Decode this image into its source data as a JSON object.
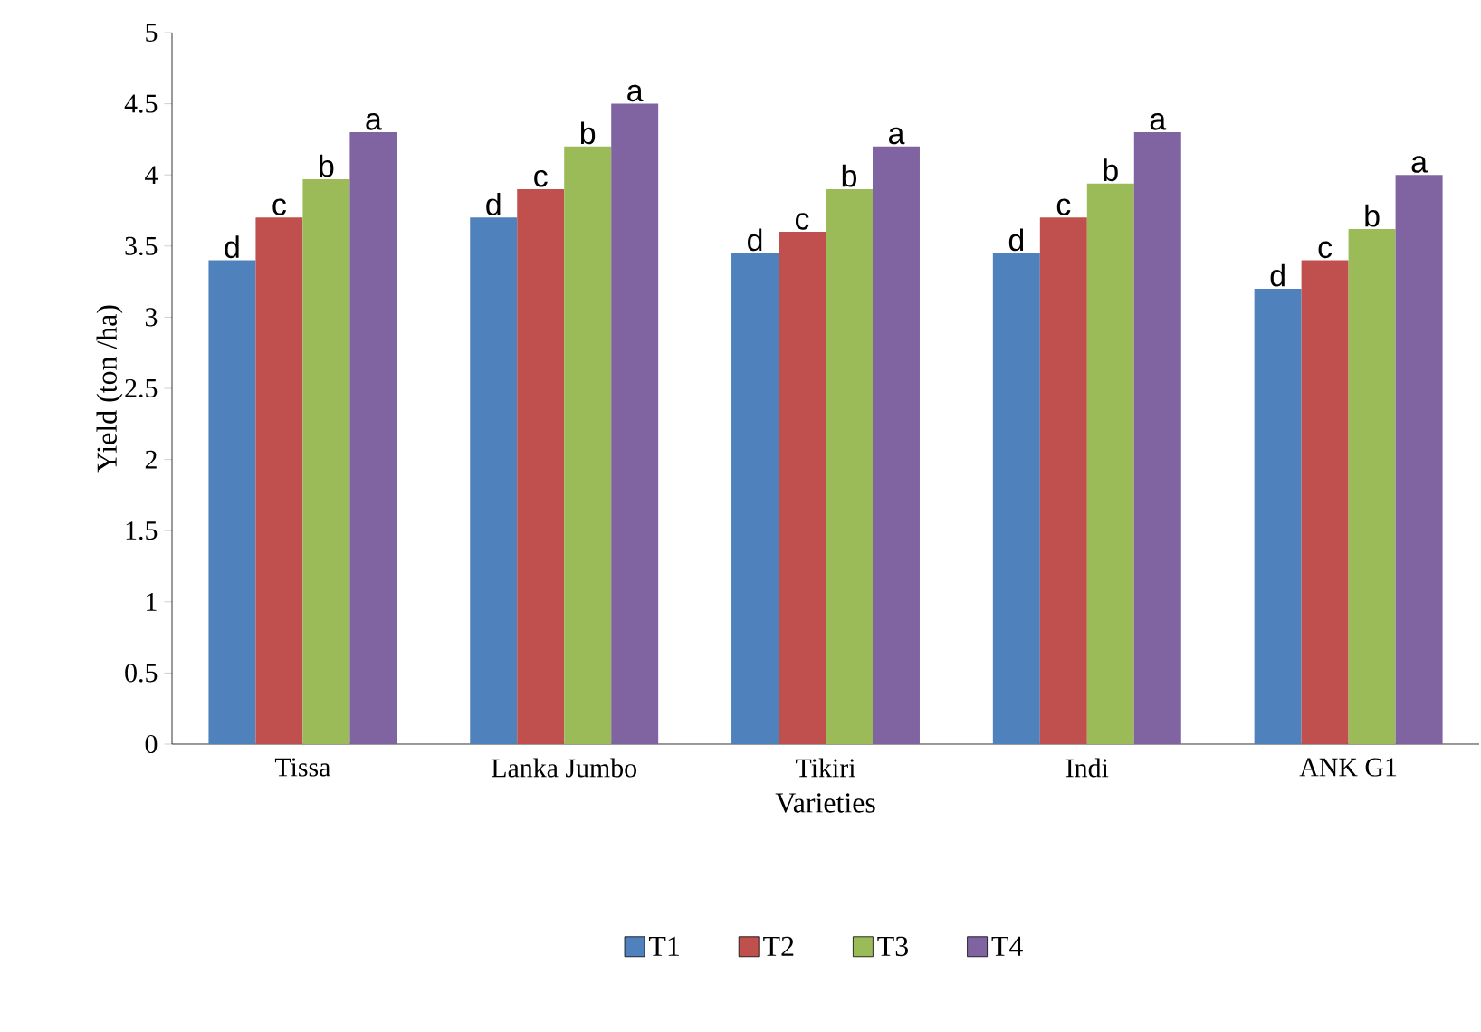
{
  "chart_data": {
    "type": "bar",
    "xlabel": "Varieties",
    "ylabel": "Yield (ton /ha)",
    "categories": [
      "Tissa",
      "Lanka Jumbo",
      "Tikiri",
      "Indi",
      "ANK G1"
    ],
    "series": [
      {
        "name": "T1",
        "color": "#4f81bd",
        "values": [
          3.4,
          3.7,
          3.45,
          3.45,
          3.2
        ],
        "value_labels": [
          "d",
          "d",
          "d",
          "d",
          "d"
        ]
      },
      {
        "name": "T2",
        "color": "#c0504d",
        "values": [
          3.7,
          3.9,
          3.6,
          3.7,
          3.4
        ],
        "value_labels": [
          "c",
          "c",
          "c",
          "c",
          "c"
        ]
      },
      {
        "name": "T3",
        "color": "#9bbb59",
        "values": [
          3.97,
          4.2,
          3.9,
          3.94,
          3.62
        ],
        "value_labels": [
          "b",
          "b",
          "b",
          "b",
          "b"
        ]
      },
      {
        "name": "T4",
        "color": "#8064a2",
        "values": [
          4.3,
          4.5,
          4.2,
          4.3,
          4.0
        ],
        "value_labels": [
          "a",
          "a",
          "a",
          "a",
          "a"
        ]
      }
    ],
    "ylim": [
      0,
      5
    ],
    "yticks": [
      0,
      0.5,
      1,
      1.5,
      2,
      2.5,
      3,
      3.5,
      4,
      4.5,
      5
    ],
    "legend": "bottom",
    "grid": false
  }
}
